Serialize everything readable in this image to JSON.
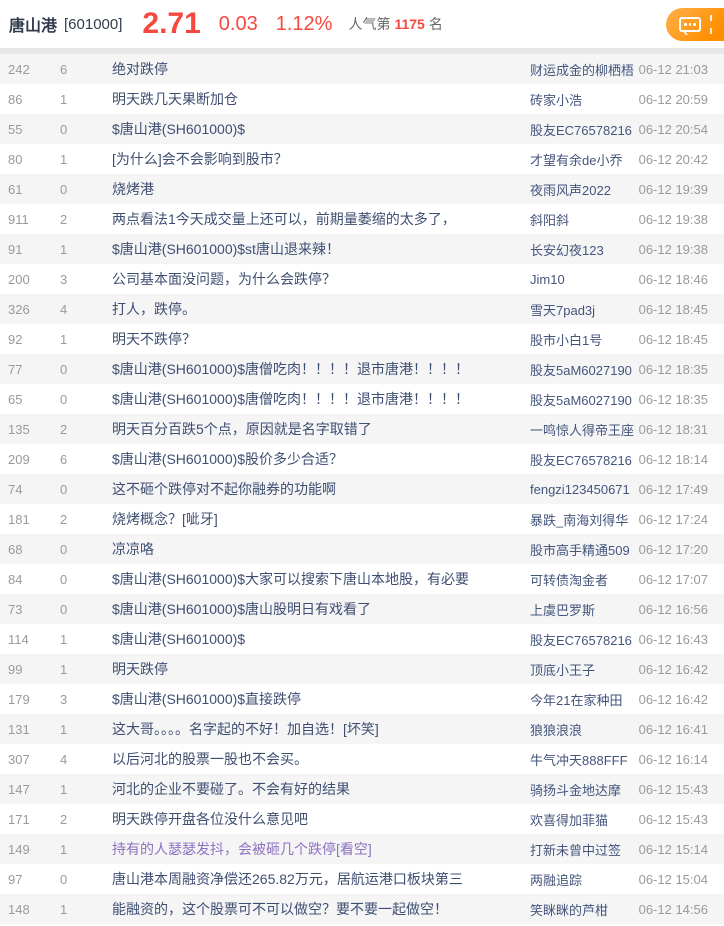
{
  "header": {
    "stock_name": "唐山港",
    "stock_code": "[601000]",
    "price": "2.71",
    "change": "0.03",
    "change_pct": "1.12%",
    "popularity_prefix": "人气第",
    "popularity_rank": "1175",
    "popularity_suffix": "名",
    "post_button_icon": "chat-bubble-icon",
    "colors": {
      "up_red": "#f5483f",
      "accent_orange": "#ff8f00",
      "title_link_blue": "#3e4e71",
      "visited_link_purple": "#8d71c1",
      "muted_gray": "#9a9a9a"
    }
  },
  "posts": [
    {
      "reads": "242",
      "comments": "6",
      "title": "绝对跌停",
      "author": "财运成金的柳栖梧",
      "time": "06-12 21:03",
      "visited": false
    },
    {
      "reads": "86",
      "comments": "1",
      "title": "明天跌几天果断加仓",
      "author": "砖家小浩",
      "time": "06-12 20:59",
      "visited": false
    },
    {
      "reads": "55",
      "comments": "0",
      "title": "$唐山港(SH601000)$",
      "author": "股友EC76578216",
      "time": "06-12 20:54",
      "visited": false
    },
    {
      "reads": "80",
      "comments": "1",
      "title": "[为什么]会不会影响到股市？",
      "author": "才望有余de小乔",
      "time": "06-12 20:42",
      "visited": false
    },
    {
      "reads": "61",
      "comments": "0",
      "title": "烧烤港",
      "author": "夜雨风声2022",
      "time": "06-12 19:39",
      "visited": false
    },
    {
      "reads": "911",
      "comments": "2",
      "title": "两点看法1今天成交量上还可以，前期量萎缩的太多了，",
      "author": "斜阳斜",
      "time": "06-12 19:38",
      "visited": false
    },
    {
      "reads": "91",
      "comments": "1",
      "title": "$唐山港(SH601000)$st唐山退来辣！",
      "author": "长安幻夜123",
      "time": "06-12 19:38",
      "visited": false
    },
    {
      "reads": "200",
      "comments": "3",
      "title": "公司基本面没问题，为什么会跌停？",
      "author": "Jim10",
      "time": "06-12 18:46",
      "visited": false
    },
    {
      "reads": "326",
      "comments": "4",
      "title": "打人，跌停。",
      "author": "雪天7pad3j",
      "time": "06-12 18:45",
      "visited": false
    },
    {
      "reads": "92",
      "comments": "1",
      "title": "明天不跌停？",
      "author": "股市小白1号",
      "time": "06-12 18:45",
      "visited": false
    },
    {
      "reads": "77",
      "comments": "0",
      "title": "$唐山港(SH601000)$唐僧吃肉！！！！退市唐港！！！！",
      "author": "股友5aM6027190",
      "time": "06-12 18:35",
      "visited": false
    },
    {
      "reads": "65",
      "comments": "0",
      "title": "$唐山港(SH601000)$唐僧吃肉！！！！退市唐港！！！！",
      "author": "股友5aM6027190",
      "time": "06-12 18:35",
      "visited": false
    },
    {
      "reads": "135",
      "comments": "2",
      "title": "明天百分百跌5个点，原因就是名字取错了",
      "author": "一鸣惊人得帝王座",
      "time": "06-12 18:31",
      "visited": false
    },
    {
      "reads": "209",
      "comments": "6",
      "title": "$唐山港(SH601000)$股价多少合适？",
      "author": "股友EC76578216",
      "time": "06-12 18:14",
      "visited": false
    },
    {
      "reads": "74",
      "comments": "0",
      "title": "这不砸个跌停对不起你融券的功能啊",
      "author": "fengzi123450671",
      "time": "06-12 17:49",
      "visited": false
    },
    {
      "reads": "181",
      "comments": "2",
      "title": "烧烤概念？[呲牙]",
      "author": "暴跌_南海刘得华",
      "time": "06-12 17:24",
      "visited": false
    },
    {
      "reads": "68",
      "comments": "0",
      "title": "凉凉咯",
      "author": "股市高手精通509",
      "time": "06-12 17:20",
      "visited": false
    },
    {
      "reads": "84",
      "comments": "0",
      "title": "$唐山港(SH601000)$大家可以搜索下唐山本地股，有必要",
      "author": "可转债淘金者",
      "time": "06-12 17:07",
      "visited": false
    },
    {
      "reads": "73",
      "comments": "0",
      "title": "$唐山港(SH601000)$唐山股明日有戏看了",
      "author": "上虞巴罗斯",
      "time": "06-12 16:56",
      "visited": false
    },
    {
      "reads": "114",
      "comments": "1",
      "title": "$唐山港(SH601000)$",
      "author": "股友EC76578216",
      "time": "06-12 16:43",
      "visited": false
    },
    {
      "reads": "99",
      "comments": "1",
      "title": "明天跌停",
      "author": "顶底小王子",
      "time": "06-12 16:42",
      "visited": false
    },
    {
      "reads": "179",
      "comments": "3",
      "title": "$唐山港(SH601000)$直接跌停",
      "author": "今年21在家种田",
      "time": "06-12 16:42",
      "visited": false
    },
    {
      "reads": "131",
      "comments": "1",
      "title": "这大哥。。。。名字起的不好！加自选！[坏笑]",
      "author": "狼狼浪浪",
      "time": "06-12 16:41",
      "visited": false
    },
    {
      "reads": "307",
      "comments": "4",
      "title": "以后河北的股票一股也不会买。",
      "author": "牛气冲天888FFF",
      "time": "06-12 16:14",
      "visited": false
    },
    {
      "reads": "147",
      "comments": "1",
      "title": "河北的企业不要碰了。不会有好的结果",
      "author": "骑扬斗金地达摩",
      "time": "06-12 15:43",
      "visited": false
    },
    {
      "reads": "171",
      "comments": "2",
      "title": "明天跌停开盘各位没什么意见吧",
      "author": "欢喜得加菲猫",
      "time": "06-12 15:43",
      "visited": false
    },
    {
      "reads": "149",
      "comments": "1",
      "title": "持有的人瑟瑟发抖，会被砸几个跌停[看空]",
      "author": "打新未曾中过签",
      "time": "06-12 15:14",
      "visited": true
    },
    {
      "reads": "97",
      "comments": "0",
      "title": "唐山港本周融资净偿还265.82万元，居航运港口板块第三",
      "author": "两融追踪",
      "time": "06-12 15:04",
      "visited": false
    },
    {
      "reads": "148",
      "comments": "1",
      "title": "能融资的，这个股票可不可以做空？要不要一起做空！",
      "author": "笑眯眯的芦柑",
      "time": "06-12 14:56",
      "visited": false
    }
  ]
}
